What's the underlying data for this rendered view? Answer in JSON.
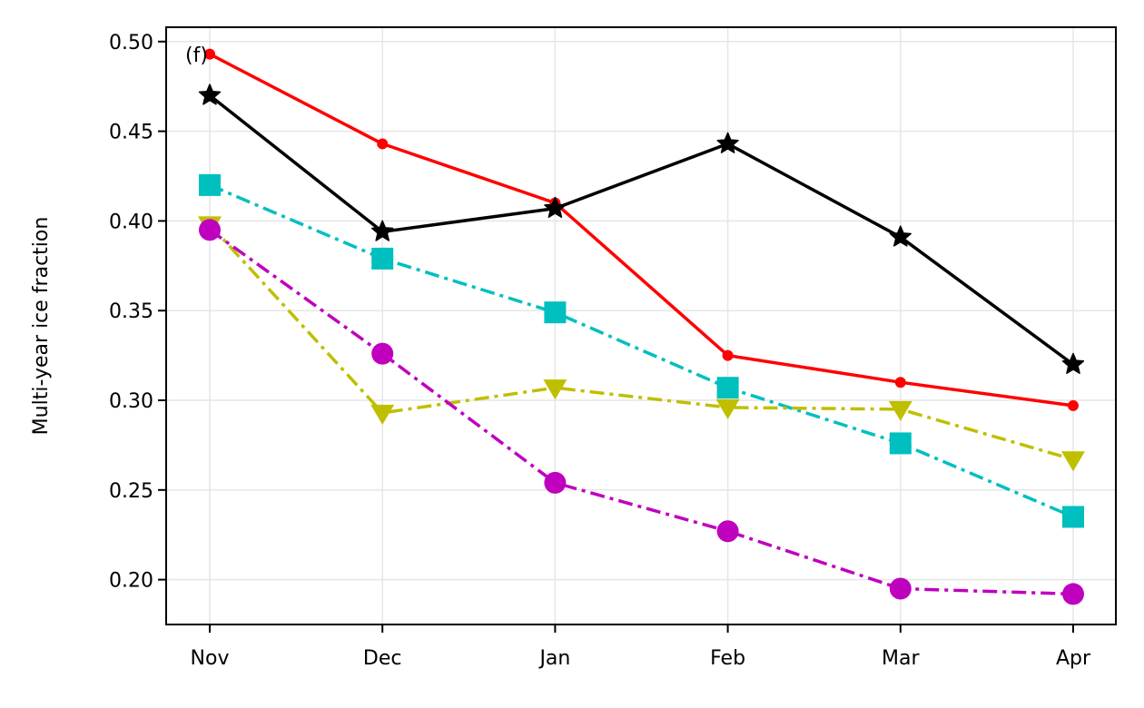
{
  "chart_data": {
    "type": "line",
    "panel_label": "(f)",
    "ylabel": "Multi-year ice fraction",
    "xlabel": "",
    "categories": [
      "Nov",
      "Dec",
      "Jan",
      "Feb",
      "Mar",
      "Apr"
    ],
    "ylim": [
      0.175,
      0.508
    ],
    "yticks": [
      0.2,
      0.25,
      0.3,
      0.35,
      0.4,
      0.45,
      0.5
    ],
    "ytick_labels": [
      "0.20",
      "0.25",
      "0.30",
      "0.35",
      "0.40",
      "0.45",
      "0.50"
    ],
    "grid": true,
    "series": [
      {
        "values": [
          0.493,
          0.443,
          0.41,
          0.325,
          0.31,
          0.297
        ],
        "color": "#ff0000",
        "line": "solid",
        "marker": "dot"
      },
      {
        "values": [
          0.47,
          0.394,
          0.407,
          0.443,
          0.391,
          0.32
        ],
        "color": "#000000",
        "line": "solid",
        "marker": "star"
      },
      {
        "values": [
          0.42,
          0.379,
          0.349,
          0.307,
          0.276,
          0.235
        ],
        "color": "#00bfbf",
        "line": "dashdot",
        "marker": "square"
      },
      {
        "values": [
          0.398,
          0.293,
          0.307,
          0.296,
          0.295,
          0.267
        ],
        "color": "#bfbf00",
        "line": "dashdot",
        "marker": "triangle-down"
      },
      {
        "values": [
          0.395,
          0.326,
          0.254,
          0.227,
          0.195,
          0.192
        ],
        "color": "#bf00bf",
        "line": "dashdot",
        "marker": "circle"
      }
    ]
  }
}
